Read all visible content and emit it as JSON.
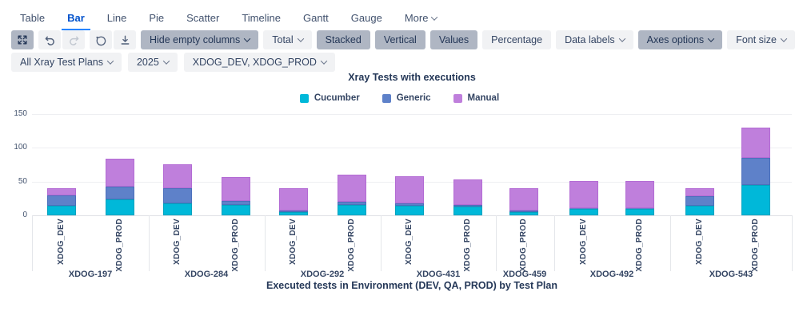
{
  "tabs": {
    "items": [
      {
        "label": "Table",
        "active": false,
        "dropdown": false
      },
      {
        "label": "Bar",
        "active": true,
        "dropdown": false
      },
      {
        "label": "Line",
        "active": false,
        "dropdown": false
      },
      {
        "label": "Pie",
        "active": false,
        "dropdown": false
      },
      {
        "label": "Scatter",
        "active": false,
        "dropdown": false
      },
      {
        "label": "Timeline",
        "active": false,
        "dropdown": false
      },
      {
        "label": "Gantt",
        "active": false,
        "dropdown": false
      },
      {
        "label": "Gauge",
        "active": false,
        "dropdown": false
      },
      {
        "label": "More",
        "active": false,
        "dropdown": true
      }
    ]
  },
  "toolbar": {
    "icon_buttons": [
      {
        "icon": "expand-icon",
        "toggled": true,
        "disabled": false,
        "group": "a"
      },
      {
        "icon": "undo-icon",
        "toggled": false,
        "disabled": false,
        "group": "b"
      },
      {
        "icon": "redo-icon",
        "toggled": false,
        "disabled": true,
        "group": "b"
      },
      {
        "icon": "comment-icon",
        "toggled": false,
        "disabled": false,
        "group": "c"
      },
      {
        "icon": "download-icon",
        "toggled": false,
        "disabled": false,
        "group": "c"
      }
    ],
    "buttons": [
      {
        "label": "Hide empty columns",
        "dropdown": true,
        "toggled": true
      },
      {
        "label": "Total",
        "dropdown": true,
        "toggled": false
      },
      {
        "label": "Stacked",
        "dropdown": false,
        "toggled": true
      },
      {
        "label": "Vertical",
        "dropdown": false,
        "toggled": true
      },
      {
        "label": "Values",
        "dropdown": false,
        "toggled": true
      },
      {
        "label": "Percentage",
        "dropdown": false,
        "toggled": false
      },
      {
        "label": "Data labels",
        "dropdown": true,
        "toggled": false
      },
      {
        "label": "Axes options",
        "dropdown": true,
        "toggled": true
      },
      {
        "label": "Font size",
        "dropdown": true,
        "toggled": false
      }
    ],
    "refresh_button": {
      "icon": "refresh-icon",
      "toggled": true
    }
  },
  "filters": [
    {
      "label": "All Xray Test Plans"
    },
    {
      "label": "2025"
    },
    {
      "label": "XDOG_DEV, XDOG_PROD"
    }
  ],
  "colors": {
    "accent": "#0052CC",
    "tab_underline": "#2684FF",
    "toggled_button_bg": "#AFB6C3",
    "button_bg": "#F1F2F4",
    "text_navy": "#253858",
    "cucumber": "#00B8D9",
    "generic": "#5E81C9",
    "manual": "#BF7FDC"
  },
  "chart_data": {
    "type": "bar",
    "stacked": true,
    "orientation": "vertical",
    "title": "Xray Tests with executions",
    "xlabel": "Executed tests in Environment (DEV, QA, PROD) by Test Plan",
    "ylabel": "",
    "ylim": [
      0,
      150
    ],
    "y_ticks": [
      0,
      50,
      100,
      150
    ],
    "grid": true,
    "legend_position": "top",
    "series": [
      {
        "name": "Cucumber",
        "color": "#00B8D9",
        "border": "#00A3BF"
      },
      {
        "name": "Generic",
        "color": "#5E81C9",
        "border": "#4C70BC"
      },
      {
        "name": "Manual",
        "color": "#BF7FDC",
        "border": "#B36BD4"
      }
    ],
    "groups": [
      "XDOG-197",
      "XDOG-284",
      "XDOG-292",
      "XDOG-431",
      "XDOG-459",
      "XDOG-492",
      "XDOG-543"
    ],
    "bars": [
      {
        "group": "XDOG-197",
        "env": "XDOG_DEV",
        "values": [
          14,
          16,
          10
        ],
        "total": 40
      },
      {
        "group": "XDOG-197",
        "env": "XDOG_PROD",
        "values": [
          23,
          19,
          42
        ],
        "total": 84
      },
      {
        "group": "XDOG-284",
        "env": "XDOG_DEV",
        "values": [
          18,
          22,
          35
        ],
        "total": 75
      },
      {
        "group": "XDOG-284",
        "env": "XDOG_PROD",
        "values": [
          15,
          6,
          35
        ],
        "total": 56
      },
      {
        "group": "XDOG-292",
        "env": "XDOG_DEV",
        "values": [
          5,
          2,
          33
        ],
        "total": 40
      },
      {
        "group": "XDOG-292",
        "env": "XDOG_PROD",
        "values": [
          15,
          5,
          40
        ],
        "total": 60
      },
      {
        "group": "XDOG-431",
        "env": "XDOG_DEV",
        "values": [
          14,
          4,
          40
        ],
        "total": 58
      },
      {
        "group": "XDOG-431",
        "env": "XDOG_PROD",
        "values": [
          13,
          2,
          38
        ],
        "total": 53
      },
      {
        "group": "XDOG-459",
        "env": "XDOG_PROD",
        "values": [
          5,
          2,
          33
        ],
        "total": 40
      },
      {
        "group": "XDOG-492",
        "env": "XDOG_DEV",
        "values": [
          10,
          1,
          40
        ],
        "total": 51
      },
      {
        "group": "XDOG-492",
        "env": "XDOG_PROD",
        "values": [
          10,
          1,
          40
        ],
        "total": 51
      },
      {
        "group": "XDOG-543",
        "env": "XDOG_DEV",
        "values": [
          14,
          14,
          12
        ],
        "total": 40
      },
      {
        "group": "XDOG-543",
        "env": "XDOG_PROD",
        "values": [
          45,
          40,
          45
        ],
        "total": 130
      }
    ]
  }
}
